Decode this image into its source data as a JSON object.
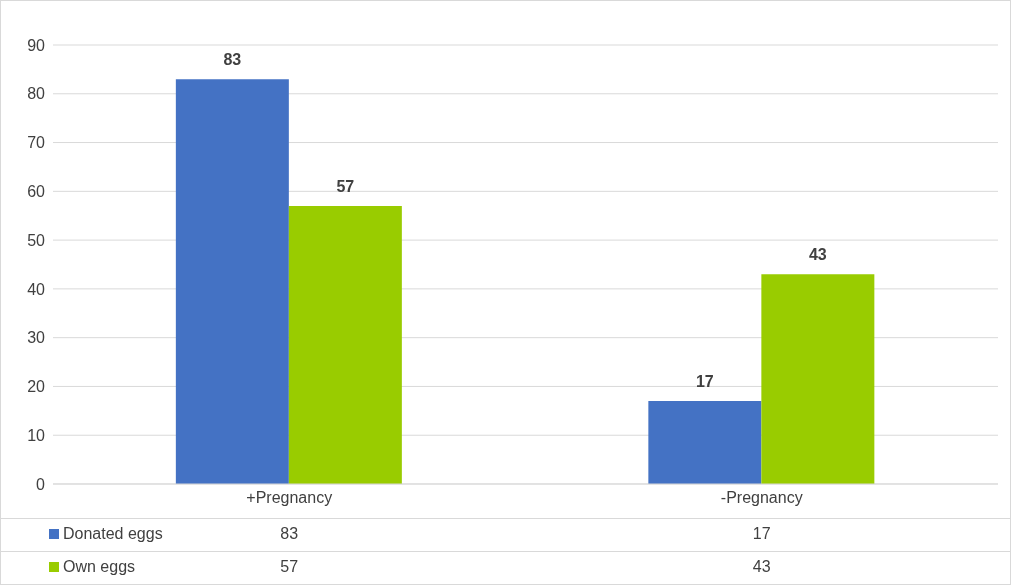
{
  "chart_data": {
    "type": "bar",
    "categories": [
      "+Pregnancy",
      "-Pregnancy"
    ],
    "series": [
      {
        "name": "Donated eggs",
        "color": "#4472c4",
        "values": [
          83,
          17
        ]
      },
      {
        "name": "Own eggs",
        "color": "#99cc00",
        "values": [
          57,
          43
        ]
      }
    ],
    "ylim": [
      0,
      90
    ],
    "yticks": [
      0,
      10,
      20,
      30,
      40,
      50,
      60,
      70,
      80,
      90
    ],
    "grid": "y",
    "data_labels": true,
    "legend": "bottom",
    "annotations": [
      "83",
      "17",
      "57",
      "43"
    ]
  }
}
